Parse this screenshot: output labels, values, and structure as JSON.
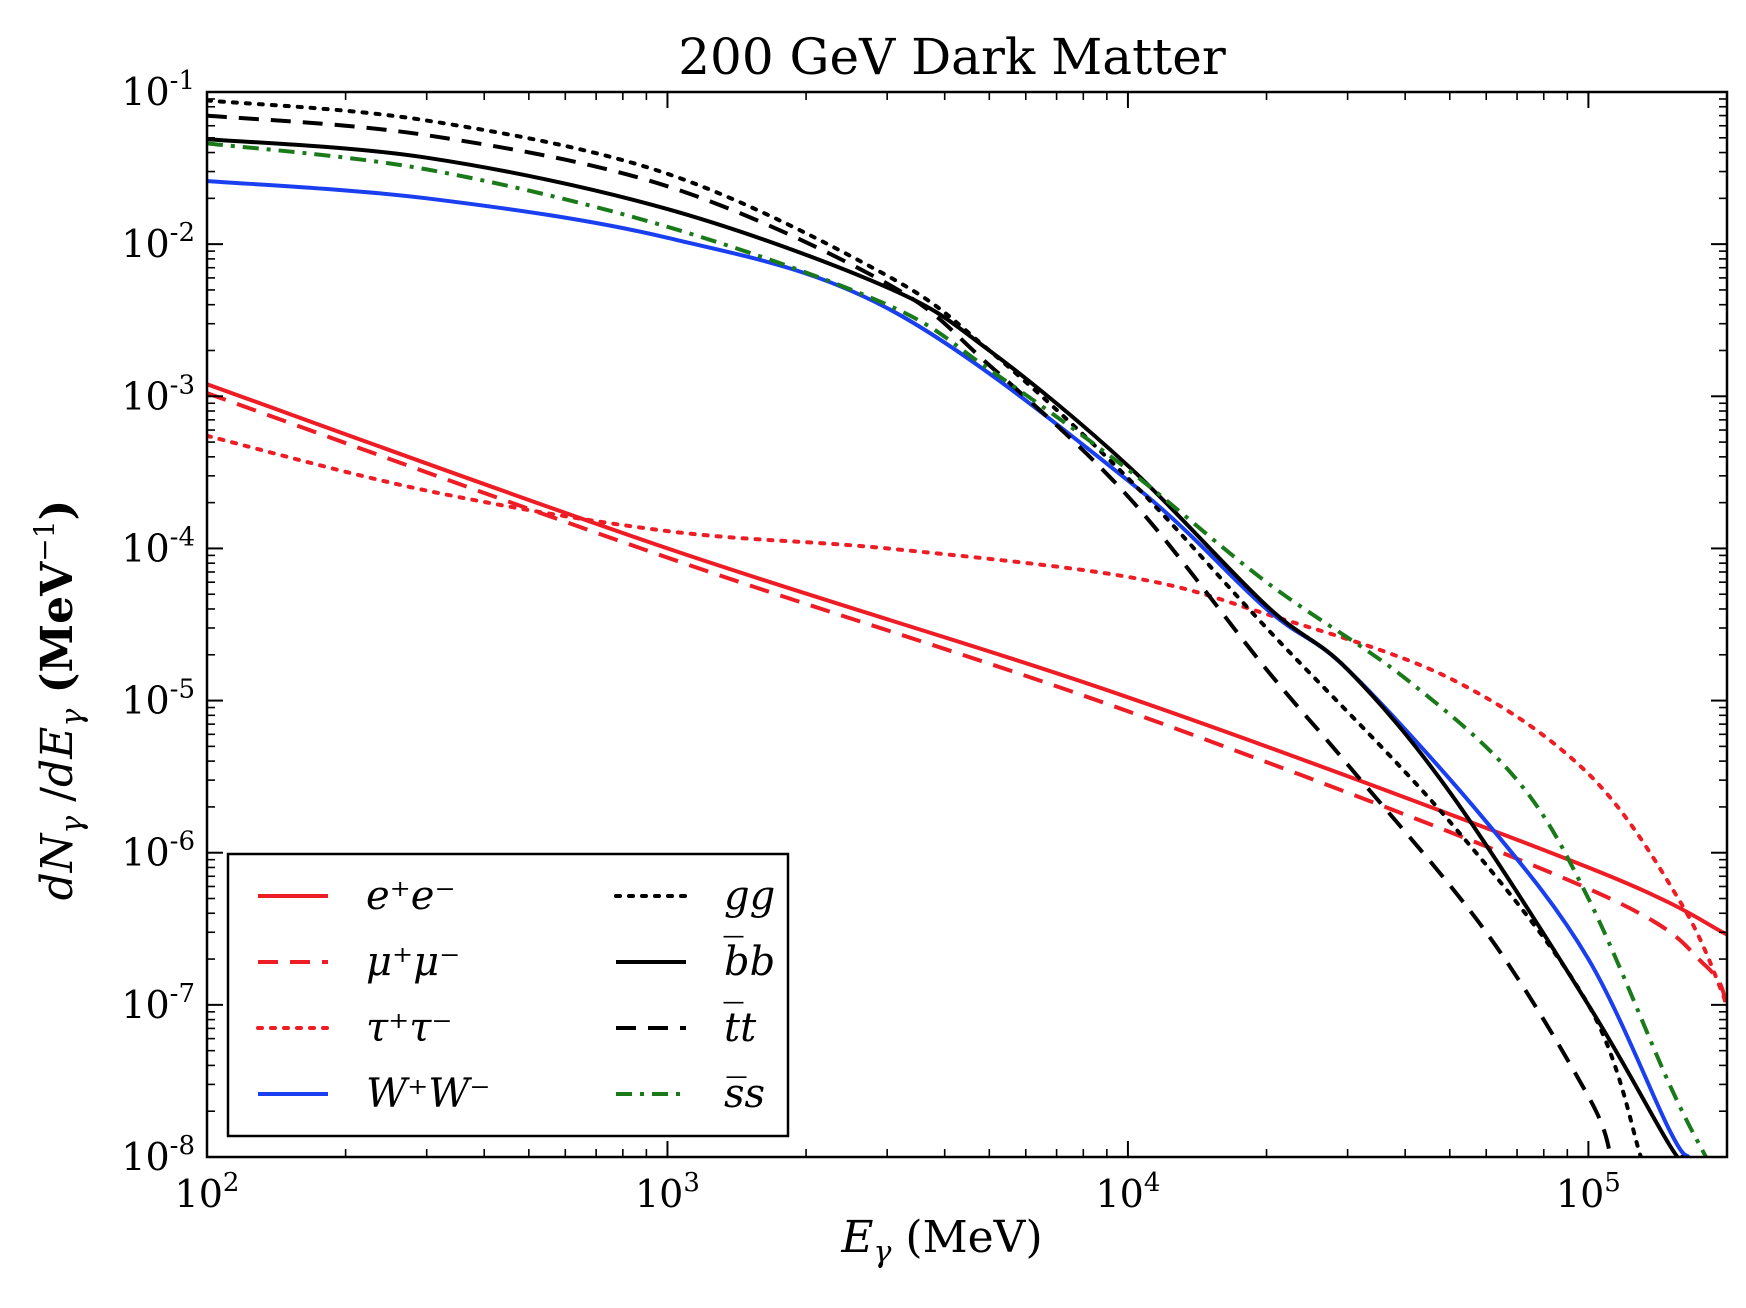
{
  "chart_data": {
    "type": "line",
    "title": "200 GeV Dark Matter",
    "xlabel": "E_γ (MeV)",
    "ylabel": "dN_γ / dE_γ (MeV⁻¹)",
    "xscale": "log",
    "yscale": "log",
    "xlim": [
      100,
      200000
    ],
    "ylim": [
      1e-08,
      0.1
    ],
    "x_ticks": [
      {
        "base": "10",
        "exp": "2"
      },
      {
        "base": "10",
        "exp": "3"
      },
      {
        "base": "10",
        "exp": "4"
      },
      {
        "base": "10",
        "exp": "5"
      }
    ],
    "y_ticks": [
      {
        "base": "10",
        "exp": "-1"
      },
      {
        "base": "10",
        "exp": "-2"
      },
      {
        "base": "10",
        "exp": "-3"
      },
      {
        "base": "10",
        "exp": "-4"
      },
      {
        "base": "10",
        "exp": "-5"
      },
      {
        "base": "10",
        "exp": "-6"
      },
      {
        "base": "10",
        "exp": "-7"
      },
      {
        "base": "10",
        "exp": "-8"
      }
    ],
    "grid": false,
    "legend_position": "lower-left",
    "series": [
      {
        "name": "e⁺e⁻",
        "color": "#ee1c24",
        "style": "solid",
        "points": [
          [
            100,
            0.0012
          ],
          [
            1000,
            0.0001
          ],
          [
            10000,
            1.05e-05
          ],
          [
            100000,
            8e-07
          ],
          [
            200000,
            2.9e-07
          ]
        ]
      },
      {
        "name": "μ⁺μ⁻",
        "color": "#ee1c24",
        "style": "dashed",
        "points": [
          [
            100,
            0.00105
          ],
          [
            1000,
            8.7e-05
          ],
          [
            10000,
            8.5e-06
          ],
          [
            100000,
            5.8e-07
          ],
          [
            180000,
            1.8e-07
          ],
          [
            200000,
            9e-08
          ]
        ]
      },
      {
        "name": "τ⁺τ⁻",
        "color": "#ee1c24",
        "style": "dotted",
        "points": [
          [
            100,
            0.00055
          ],
          [
            300,
            0.00024
          ],
          [
            1000,
            0.00013
          ],
          [
            3000,
            0.0001
          ],
          [
            10000,
            6.5e-05
          ],
          [
            20000,
            3.7e-05
          ],
          [
            50000,
            1.4e-05
          ],
          [
            100000,
            3.3e-06
          ],
          [
            160000,
            4.5e-07
          ],
          [
            200000,
            1e-07
          ]
        ]
      },
      {
        "name": "W⁺W⁻",
        "color": "#1a3ff0",
        "style": "solid",
        "points": [
          [
            100,
            0.026
          ],
          [
            300,
            0.02
          ],
          [
            1000,
            0.011
          ],
          [
            3000,
            0.0038
          ],
          [
            10000,
            0.00028
          ],
          [
            20000,
            4e-05
          ],
          [
            30000,
            1.6e-05
          ],
          [
            60000,
            1.6e-06
          ],
          [
            100000,
            2e-07
          ],
          [
            150000,
            1.5e-08
          ],
          [
            165000,
            1e-08
          ]
        ]
      },
      {
        "name": "gg",
        "color": "#000000",
        "style": "dotted",
        "points": [
          [
            100,
            0.088
          ],
          [
            300,
            0.065
          ],
          [
            1000,
            0.029
          ],
          [
            3000,
            0.0062
          ],
          [
            5000,
            0.002
          ],
          [
            10000,
            0.00029
          ],
          [
            20000,
            3e-05
          ],
          [
            50000,
            1.6e-06
          ],
          [
            100000,
            1e-07
          ],
          [
            130000,
            1e-08
          ]
        ]
      },
      {
        "name": "b̅b",
        "color": "#000000",
        "style": "solid",
        "points": [
          [
            100,
            0.049
          ],
          [
            300,
            0.037
          ],
          [
            1000,
            0.017
          ],
          [
            3000,
            0.0052
          ],
          [
            5000,
            0.002
          ],
          [
            10000,
            0.00035
          ],
          [
            20000,
            4.2e-05
          ],
          [
            30000,
            1.6e-05
          ],
          [
            50000,
            2.5e-06
          ],
          [
            100000,
            1e-07
          ],
          [
            150000,
            1.2e-08
          ],
          [
            160000,
            1e-08
          ]
        ]
      },
      {
        "name": "t̅t",
        "color": "#000000",
        "style": "dashed",
        "points": [
          [
            100,
            0.07
          ],
          [
            300,
            0.052
          ],
          [
            1000,
            0.024
          ],
          [
            3000,
            0.0055
          ],
          [
            5000,
            0.0016
          ],
          [
            10000,
            0.00022
          ],
          [
            20000,
            1.6e-05
          ],
          [
            30000,
            3.8e-06
          ],
          [
            60000,
            3e-07
          ],
          [
            100000,
            2.5e-08
          ],
          [
            112000,
            1e-08
          ]
        ]
      },
      {
        "name": "s̅s",
        "color": "#1a7a1a",
        "style": "dashdot",
        "points": [
          [
            100,
            0.046
          ],
          [
            300,
            0.031
          ],
          [
            1000,
            0.013
          ],
          [
            3000,
            0.004
          ],
          [
            5000,
            0.0015
          ],
          [
            10000,
            0.00033
          ],
          [
            20000,
            6e-05
          ],
          [
            40000,
            1.4e-05
          ],
          [
            70000,
            3e-06
          ],
          [
            100000,
            5e-07
          ],
          [
            150000,
            3e-08
          ],
          [
            180000,
            1e-08
          ]
        ]
      }
    ]
  }
}
